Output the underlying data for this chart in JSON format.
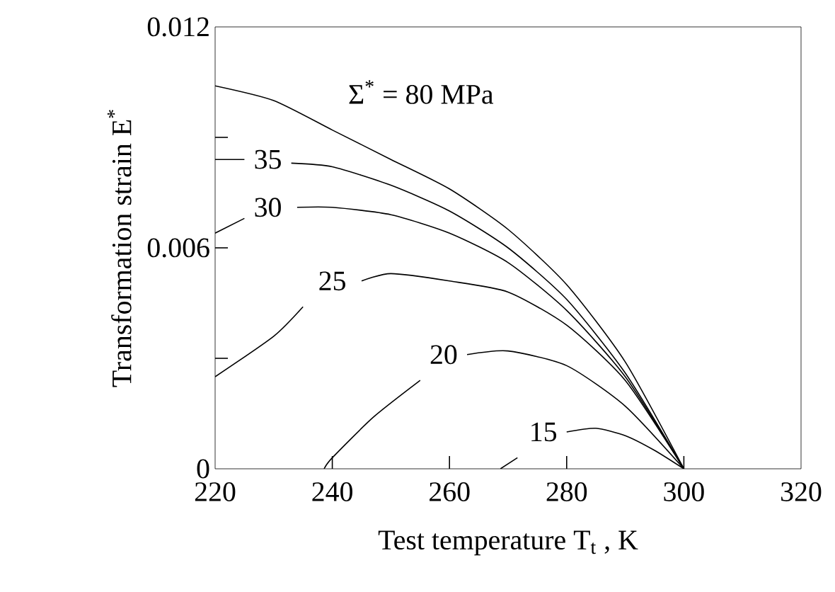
{
  "chart_data": {
    "type": "line",
    "xlabel": "Test temperature   T$_{t}$ ,   K",
    "ylabel": "Transformation strain   E$^{*}$",
    "xlim": [
      220,
      320
    ],
    "xticks": [
      220,
      240,
      260,
      280,
      300,
      320
    ],
    "ylim": [
      0,
      0.012
    ],
    "yticks": [
      0,
      {
        "value": 0.003,
        "label": null
      },
      0.006,
      {
        "value": 0.009,
        "label": null
      },
      0.012
    ],
    "grid": false,
    "legend": false,
    "marker": "none",
    "line_style": "solid",
    "series": [
      {
        "name": "Σ$^{*}$ = 80 MPa",
        "color": "#000000",
        "x": [
          220,
          230,
          240,
          250,
          260,
          270,
          280,
          290,
          300
        ],
        "values": [
          0.0104,
          0.01,
          0.0092,
          0.0084,
          0.0076,
          0.0065,
          0.005,
          0.0029,
          0
        ]
      },
      {
        "name": "35",
        "color": "#000000",
        "x": [
          220,
          225,
          229,
          233,
          240,
          250,
          260,
          270,
          280,
          290,
          300
        ],
        "values": [
          0.0084,
          0.0084,
          null,
          0.0083,
          0.0082,
          0.0077,
          0.007,
          0.006,
          0.0046,
          0.0026,
          0
        ]
      },
      {
        "name": "30",
        "color": "#000000",
        "x": [
          220,
          225,
          229,
          234,
          240,
          250,
          260,
          270,
          280,
          290,
          300
        ],
        "values": [
          0.0064,
          0.0068,
          null,
          0.0071,
          0.0071,
          0.0069,
          0.0064,
          0.0056,
          0.0043,
          0.0025,
          0
        ]
      },
      {
        "name": "25",
        "color": "#000000",
        "x": [
          220,
          230,
          235,
          240,
          245,
          250,
          260,
          270,
          280,
          290,
          300
        ],
        "values": [
          0.0025,
          0.0036,
          0.0044,
          null,
          0.0051,
          0.0053,
          0.0051,
          0.0048,
          0.0039,
          0.0024,
          0
        ]
      },
      {
        "name": "20",
        "color": "#000000",
        "x": [
          238.6,
          240,
          247,
          255,
          259,
          263,
          270,
          280,
          290,
          300
        ],
        "values": [
          0,
          0.0003,
          0.0014,
          0.0024,
          null,
          0.0031,
          0.0032,
          0.0028,
          0.0017,
          0
        ]
      },
      {
        "name": "15",
        "color": "#000000",
        "x": [
          268.7,
          271.6,
          276,
          280,
          285,
          290,
          295,
          300
        ],
        "values": [
          0,
          0.0003,
          null,
          0.001,
          0.0011,
          0.0009,
          0.0005,
          0
        ]
      }
    ]
  }
}
